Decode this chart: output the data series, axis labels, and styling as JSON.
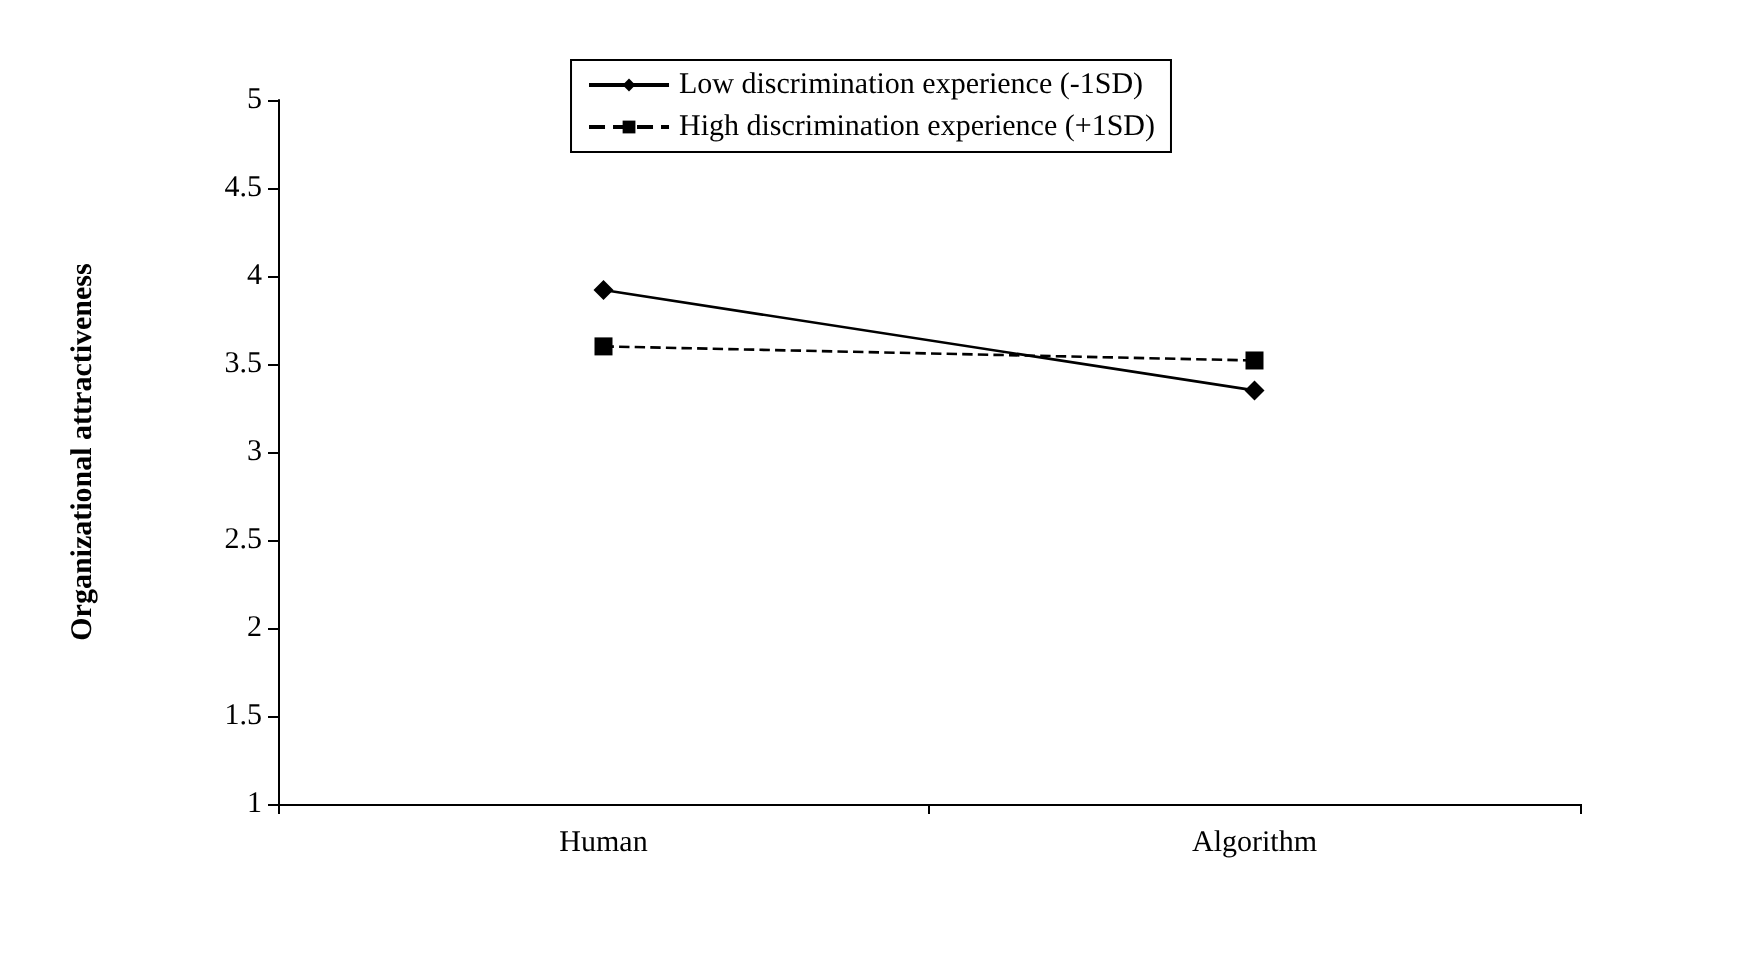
{
  "chart_data": {
    "type": "line",
    "ylabel": "Organizational attractiveness",
    "categories": [
      "Human",
      "Algorithm"
    ],
    "series": [
      {
        "name": "Low discrimination experience (-1SD)",
        "color": "#000000",
        "values": [
          3.92,
          3.35
        ],
        "marker": "diamond",
        "line_style": "solid"
      },
      {
        "name": "High discrimination experience (+1SD)",
        "color": "#000000",
        "values": [
          3.6,
          3.52
        ],
        "marker": "square",
        "line_style": "dashed"
      }
    ],
    "ylim": [
      1,
      5
    ],
    "yticks": [
      1,
      1.5,
      2,
      2.5,
      3,
      3.5,
      4,
      4.5,
      5
    ],
    "grid": false,
    "legend": "top"
  }
}
